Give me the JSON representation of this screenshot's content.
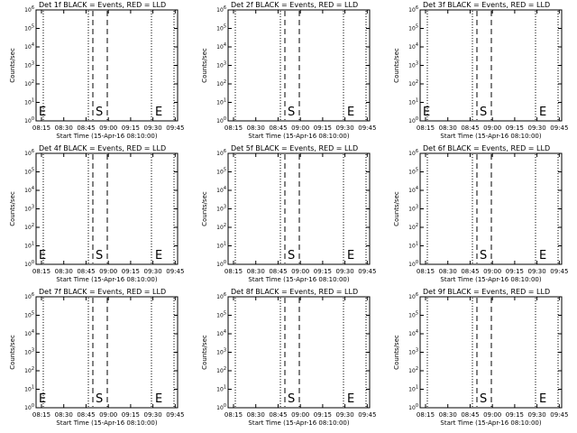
{
  "chart_data": [
    {
      "type": "line",
      "title": "Det 1f BLACK = Events, RED = LLD",
      "xlabel": "Start Time (15-Apr-16 08:10:00)",
      "ylabel": "Counts/sec",
      "x_ticks": [
        "08:15",
        "08:30",
        "08:45",
        "09:00",
        "09:15",
        "09:30",
        "09:45"
      ],
      "xlim": [
        "08:10",
        "08:49"
      ],
      "y_ticks": [
        "10^0",
        "10^1",
        "10^2",
        "10^3",
        "10^4",
        "10^5",
        "10^6"
      ],
      "ylim": [
        1,
        1000000
      ],
      "y_scale": "log",
      "dotted_lines": [
        "08:10",
        "08:36",
        "09:32",
        "08:50"
      ],
      "dashed_lines": [
        "08:47",
        "08:57"
      ],
      "markers": [
        {
          "label": "E",
          "x": "08:11"
        },
        {
          "label": "S",
          "x": "08:51"
        },
        {
          "label": "E",
          "x": "09:32"
        }
      ]
    },
    {
      "type": "line",
      "title": "Det 2f BLACK = Events, RED = LLD",
      "xlabel": "Start Time (15-Apr-16 08:10:00)",
      "ylabel": "Counts/sec",
      "x_ticks": [
        "08:15",
        "08:30",
        "08:45",
        "09:00",
        "09:15",
        "09:30",
        "09:45"
      ],
      "xlim": [
        "08:10",
        "08:49"
      ],
      "y_ticks": [
        "10^0",
        "10^1",
        "10^2",
        "10^3",
        "10^4",
        "10^5",
        "10^6"
      ],
      "ylim": [
        1,
        1000000
      ],
      "y_scale": "log",
      "markers": [
        {
          "label": "S",
          "x": "08:51"
        },
        {
          "label": "E",
          "x": "09:32"
        }
      ]
    },
    {
      "type": "line",
      "title": "Det 3f BLACK = Events, RED = LLD",
      "xlabel": "Start Time (15-Apr-16 08:10:00)",
      "ylabel": "Counts/sec",
      "x_ticks": [
        "08:15",
        "08:30",
        "08:45",
        "09:00",
        "09:15",
        "09:30",
        "09:45"
      ],
      "xlim": [
        "08:10",
        "08:49"
      ],
      "y_ticks": [
        "10^0",
        "10^1",
        "10^2",
        "10^3",
        "10^4",
        "10^5",
        "10^6"
      ],
      "ylim": [
        1,
        1000000
      ],
      "y_scale": "log",
      "markers": [
        {
          "label": "E",
          "x": "08:11"
        },
        {
          "label": "S",
          "x": "08:51"
        },
        {
          "label": "E",
          "x": "09:32"
        }
      ]
    },
    {
      "type": "line",
      "title": "Det 4f BLACK = Events, RED = LLD",
      "xlabel": "Start Time (15-Apr-16 08:10:00)",
      "ylabel": "Counts/sec",
      "x_ticks": [
        "08:15",
        "08:30",
        "08:45",
        "09:00",
        "09:15",
        "09:30",
        "09:45"
      ],
      "xlim": [
        "08:10",
        "08:49"
      ],
      "y_ticks": [
        "10^0",
        "10^1",
        "10^2",
        "10^3",
        "10^4",
        "10^5",
        "10^6"
      ],
      "ylim": [
        1,
        1000000
      ],
      "y_scale": "log",
      "markers": [
        {
          "label": "E",
          "x": "08:11"
        },
        {
          "label": "S",
          "x": "08:51"
        },
        {
          "label": "E",
          "x": "09:32"
        }
      ]
    },
    {
      "type": "line",
      "title": "Det 5f BLACK = Events, RED = LLD",
      "xlabel": "Start Time (15-Apr-16 08:10:00)",
      "ylabel": "Counts/sec",
      "x_ticks": [
        "08:15",
        "08:30",
        "08:45",
        "09:00",
        "09:15",
        "09:30",
        "09:45"
      ],
      "xlim": [
        "08:10",
        "08:49"
      ],
      "y_ticks": [
        "10^0",
        "10^1",
        "10^2",
        "10^3",
        "10^4",
        "10^5",
        "10^6"
      ],
      "ylim": [
        1,
        1000000
      ],
      "y_scale": "log",
      "markers": [
        {
          "label": "S",
          "x": "08:51"
        },
        {
          "label": "E",
          "x": "09:32"
        }
      ]
    },
    {
      "type": "line",
      "title": "Det 6f BLACK = Events, RED = LLD",
      "xlabel": "Start Time (15-Apr-16 08:10:00)",
      "ylabel": "Counts/sec",
      "x_ticks": [
        "08:15",
        "08:30",
        "08:45",
        "09:00",
        "09:15",
        "09:30",
        "09:45"
      ],
      "xlim": [
        "08:10",
        "08:49"
      ],
      "y_ticks": [
        "10^0",
        "10^1",
        "10^2",
        "10^3",
        "10^4",
        "10^5",
        "10^6"
      ],
      "ylim": [
        1,
        1000000
      ],
      "y_scale": "log",
      "markers": [
        {
          "label": "S",
          "x": "08:51"
        },
        {
          "label": "E",
          "x": "09:32"
        }
      ]
    },
    {
      "type": "line",
      "title": "Det 7f BLACK = Events, RED = LLD",
      "xlabel": "Start Time (15-Apr-16 08:10:00)",
      "ylabel": "Counts/sec",
      "x_ticks": [
        "08:15",
        "08:30",
        "08:45",
        "09:00",
        "09:15",
        "09:30",
        "09:45"
      ],
      "xlim": [
        "08:10",
        "08:49"
      ],
      "y_ticks": [
        "10^0",
        "10^1",
        "10^2",
        "10^3",
        "10^4",
        "10^5",
        "10^6"
      ],
      "ylim": [
        1,
        1000000
      ],
      "y_scale": "log",
      "markers": [
        {
          "label": "E",
          "x": "08:11"
        },
        {
          "label": "S",
          "x": "08:51"
        },
        {
          "label": "E",
          "x": "09:32"
        }
      ]
    },
    {
      "type": "line",
      "title": "Det 8f BLACK = Events, RED = LLD",
      "xlabel": "Start Time (15-Apr-16 08:10:00)",
      "ylabel": "Counts/sec",
      "x_ticks": [
        "08:15",
        "08:30",
        "08:45",
        "09:00",
        "09:15",
        "09:30",
        "09:45"
      ],
      "xlim": [
        "08:10",
        "08:49"
      ],
      "y_ticks": [
        "10^0",
        "10^1",
        "10^2",
        "10^3",
        "10^4",
        "10^5",
        "10^6"
      ],
      "ylim": [
        1,
        1000000
      ],
      "y_scale": "log",
      "markers": [
        {
          "label": "S",
          "x": "08:51"
        },
        {
          "label": "E",
          "x": "09:32"
        }
      ]
    },
    {
      "type": "line",
      "title": "Det 9f BLACK = Events, RED = LLD",
      "xlabel": "Start Time (15-Apr-16 08:10:00)",
      "ylabel": "Counts/sec",
      "x_ticks": [
        "08:15",
        "08:30",
        "08:45",
        "09:00",
        "09:15",
        "09:30",
        "09:45"
      ],
      "xlim": [
        "08:10",
        "08:49"
      ],
      "y_ticks": [
        "10^0",
        "10^1",
        "10^2",
        "10^3",
        "10^4",
        "10^5",
        "10^6"
      ],
      "ylim": [
        1,
        1000000
      ],
      "y_scale": "log",
      "markers": [
        {
          "label": "S",
          "x": "08:51"
        },
        {
          "label": "E",
          "x": "09:32"
        }
      ]
    }
  ],
  "colors": {
    "axes": "#000000",
    "events": "#000000",
    "lld": "#ff0000",
    "background": "#ffffff"
  }
}
